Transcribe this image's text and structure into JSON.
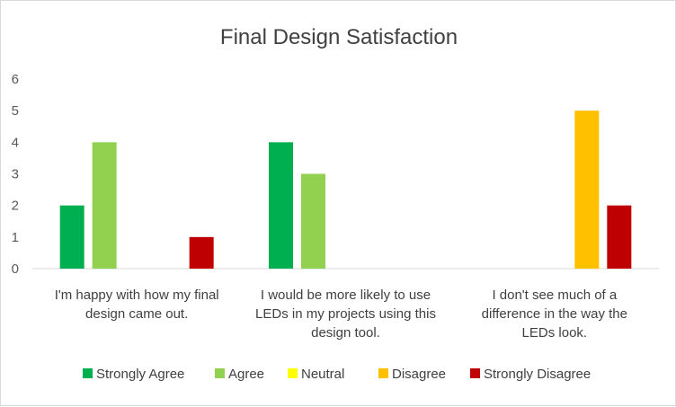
{
  "chart_data": {
    "type": "bar",
    "title": "Final Design Satisfaction",
    "categories": [
      [
        "I'm happy with how my final",
        "design came out."
      ],
      [
        "I would be more likely to use",
        "LEDs in my projects using this",
        "design tool."
      ],
      [
        "I don't see much of a",
        "difference in the way the",
        "LEDs look."
      ]
    ],
    "series": [
      {
        "name": "Strongly Agree",
        "color": "#00b050",
        "values": [
          2,
          4,
          0
        ]
      },
      {
        "name": "Agree",
        "color": "#92d050",
        "values": [
          4,
          3,
          0
        ]
      },
      {
        "name": "Neutral",
        "color": "#ffff00",
        "values": [
          0,
          0,
          0
        ]
      },
      {
        "name": "Disagree",
        "color": "#ffc000",
        "values": [
          0,
          0,
          5
        ]
      },
      {
        "name": "Strongly Disagree",
        "color": "#c00000",
        "values": [
          1,
          0,
          2
        ]
      }
    ],
    "ylim": [
      0,
      6
    ],
    "yticks": [
      0,
      1,
      2,
      3,
      4,
      5,
      6
    ],
    "grid": false,
    "legend_position": "bottom"
  }
}
